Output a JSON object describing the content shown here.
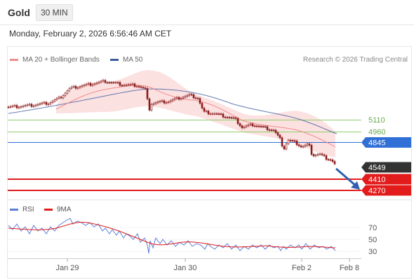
{
  "header": {
    "asset": "Gold",
    "timeframe": "30 MIN",
    "timestamp": "Monday, February 2, 2026 6:56:46 AM CET"
  },
  "legend": {
    "ma20": {
      "label": "MA 20 + Bollinger Bands",
      "color": "#f28b8b"
    },
    "ma50": {
      "label": "MA 50",
      "color": "#3a5ba0"
    },
    "copyright": "Research © 2026 Trading Central"
  },
  "levels": [
    {
      "value": "5110",
      "color": "#8fcf6a",
      "style": "text"
    },
    {
      "value": "4960",
      "color": "#8fcf6a",
      "style": "text"
    },
    {
      "value": "4845",
      "color": "#2f6fd6",
      "style": "tag"
    },
    {
      "value": "4549",
      "color": "#333333",
      "style": "tag"
    },
    {
      "value": "4410",
      "color": "#e21b1b",
      "style": "tag"
    },
    {
      "value": "4270",
      "color": "#e21b1b",
      "style": "tag"
    }
  ],
  "rsi": {
    "legend": [
      {
        "label": "RSI",
        "color": "#5b7fd6"
      },
      {
        "label": "9MA",
        "color": "#e21b1b"
      }
    ],
    "ticks": [
      "70",
      "50",
      "30"
    ]
  },
  "x_axis": {
    "ticks": [
      "Jan 29",
      "Jan 30",
      "Feb 2",
      "Feb 8"
    ]
  },
  "colors": {
    "arrow": "#2f5fae",
    "candle": "#8b1a1a",
    "band": "#f9cfcf"
  }
}
